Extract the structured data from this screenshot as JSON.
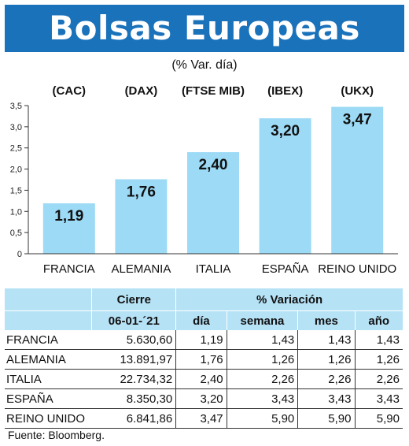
{
  "title": "Bolsas Europeas",
  "subtitle": "(% Var. día)",
  "chart_data": {
    "type": "bar",
    "categories": [
      "FRANCIA",
      "ALEMANIA",
      "ITALIA",
      "ESPAÑA",
      "REINO UNIDO"
    ],
    "index_labels": [
      "(CAC)",
      "(DAX)",
      "(FTSE MIB)",
      "(IBEX)",
      "(UKX)"
    ],
    "values": [
      1.19,
      1.76,
      2.4,
      3.2,
      3.47
    ],
    "value_labels": [
      "1,19",
      "1,76",
      "2,40",
      "3,20",
      "3,47"
    ],
    "y_ticks": [
      "0",
      "0,5",
      "1,0",
      "1,5",
      "2,0",
      "2,5",
      "3,0",
      "3,5"
    ],
    "ylim": [
      0,
      3.5
    ],
    "bar_color": "#9ddaf5",
    "grid": false
  },
  "table": {
    "header_cierre": "Cierre",
    "header_variacion": "% Variación",
    "header_date": "06-01-´21",
    "header_dia": "día",
    "header_semana": "semana",
    "header_mes": "mes",
    "header_ano": "año",
    "rows": [
      {
        "name": "FRANCIA",
        "cierre": "5.630,60",
        "dia": "1,19",
        "semana": "1,43",
        "mes": "1,43",
        "ano": "1,43"
      },
      {
        "name": "ALEMANIA",
        "cierre": "13.891,97",
        "dia": "1,76",
        "semana": "1,26",
        "mes": "1,26",
        "ano": "1,26"
      },
      {
        "name": "ITALIA",
        "cierre": "22.734,32",
        "dia": "2,40",
        "semana": "2,26",
        "mes": "2,26",
        "ano": "2,26"
      },
      {
        "name": "ESPAÑA",
        "cierre": "8.350,30",
        "dia": "3,20",
        "semana": "3,43",
        "mes": "3,43",
        "ano": "3,43"
      },
      {
        "name": "REINO UNIDO",
        "cierre": "6.841,86",
        "dia": "3,47",
        "semana": "5,90",
        "mes": "5,90",
        "ano": "5,90"
      }
    ]
  },
  "source": "Fuente: Bloomberg."
}
